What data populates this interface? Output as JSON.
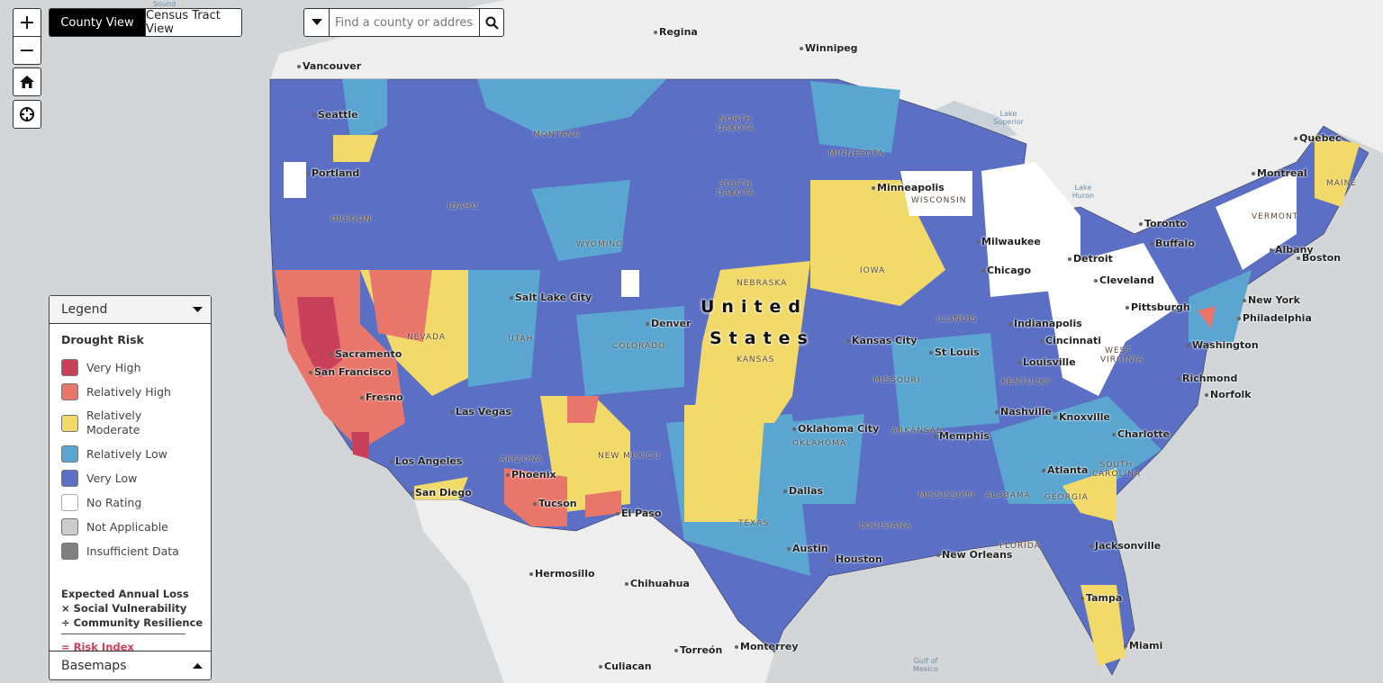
{
  "controls": {
    "zoom_in": "+",
    "zoom_out": "−",
    "home_icon": "home-icon",
    "locate_icon": "crosshair-icon"
  },
  "view_toggle": {
    "county": "County View",
    "tract": "Census Tract View",
    "active": "county"
  },
  "search": {
    "placeholder": "Find a county or address",
    "value": ""
  },
  "legend": {
    "header": "Legend",
    "title": "Drought Risk",
    "items": [
      {
        "label": "Very High",
        "color": "#c8405a"
      },
      {
        "label": "Relatively High",
        "color": "#e8766a"
      },
      {
        "label": "Relatively Moderate",
        "color": "#f1d96a"
      },
      {
        "label": "Relatively Low",
        "color": "#5aa6d0"
      },
      {
        "label": "Very Low",
        "color": "#5b70c4"
      },
      {
        "label": "No Rating",
        "color": "#ffffff"
      },
      {
        "label": "Not Applicable",
        "color": "#cccccc"
      },
      {
        "label": "Insufficient Data",
        "color": "#808080"
      }
    ],
    "formula": [
      "Expected Annual Loss",
      "× Social Vulnerability",
      "÷ Community Resilience"
    ],
    "result": "= Risk Index",
    "basemaps": "Basemaps"
  },
  "map": {
    "country": [
      "United",
      "States"
    ],
    "cities": [
      "Regina",
      "Winnipeg",
      "Vancouver",
      "Seattle",
      "Portland",
      "Sacramento",
      "San Francisco",
      "Fresno",
      "Los Angeles",
      "San Diego",
      "Las Vegas",
      "Phoenix",
      "Tucson",
      "Salt Lake City",
      "Denver",
      "El Paso",
      "Minneapolis",
      "Milwaukee",
      "Chicago",
      "Detroit",
      "Toronto",
      "Montreal",
      "Quebec",
      "Buffalo",
      "Albany",
      "Boston",
      "Cleveland",
      "Pittsburgh",
      "New York",
      "Philadelphia",
      "Washington",
      "Richmond",
      "Norfolk",
      "Indianapolis",
      "Cincinnati",
      "Louisville",
      "Kansas City",
      "St Louis",
      "Nashville",
      "Knoxville",
      "Charlotte",
      "Memphis",
      "Oklahoma City",
      "Dallas",
      "Atlanta",
      "Austin",
      "Houston",
      "New Orleans",
      "Jacksonville",
      "Tampa",
      "Miami",
      "Hermosillo",
      "Chihuahua",
      "Torreón",
      "Monterrey",
      "Culiacan"
    ],
    "states": [
      "MONTANA",
      "NORTH DAKOTA",
      "SOUTH DAKOTA",
      "MINNESOTA",
      "WISCONSIN",
      "IDAHO",
      "OREGON",
      "WYOMING",
      "NEVADA",
      "UTAH",
      "COLORADO",
      "NEBRASKA",
      "KANSAS",
      "IOWA",
      "ILLINOIS",
      "MISSOURI",
      "ARIZONA",
      "NEW MEXICO",
      "TEXAS",
      "OKLAHOMA",
      "ARKANSAS",
      "MISSISSIPPI",
      "ALABAMA",
      "GEORGIA",
      "LOUISIANA",
      "FLORIDA",
      "KENTUCKY",
      "WEST VIRGINIA",
      "SOUTH CAROLINA",
      "VERMONT",
      "MAINE"
    ],
    "water": [
      "Lake Superior",
      "Lake Huron",
      "Gulf of Mexico",
      "Sound"
    ]
  }
}
